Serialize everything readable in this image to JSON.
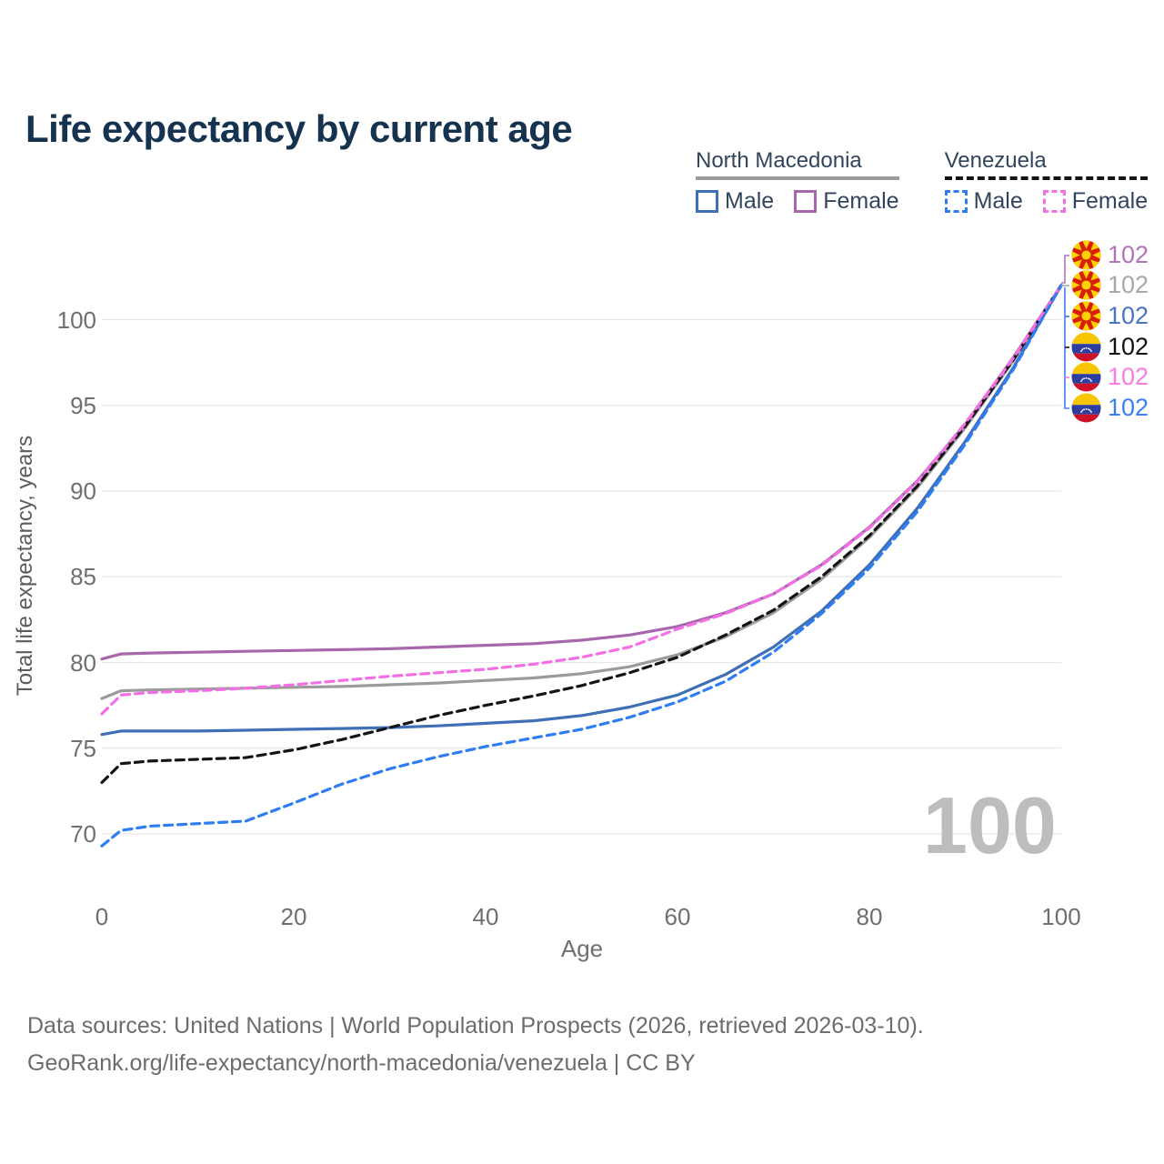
{
  "title": "Life expectancy by current age",
  "legend": {
    "groups": [
      {
        "label": "North Macedonia",
        "line_style": "solid",
        "underline_color": "#9b9b9b",
        "items": [
          {
            "label": "Male",
            "color": "#3f6fb5",
            "dashed": false
          },
          {
            "label": "Female",
            "color": "#a667ac",
            "dashed": false
          }
        ]
      },
      {
        "label": "Venezuela",
        "line_style": "dashed",
        "underline_color": "#141414",
        "items": [
          {
            "label": "Male",
            "color": "#2e7df2",
            "dashed": true
          },
          {
            "label": "Female",
            "color": "#f46ee6",
            "dashed": true
          }
        ]
      }
    ]
  },
  "chart_data": {
    "type": "line",
    "title": "Life expectancy by current age",
    "xlabel": "Age",
    "ylabel": "Total life expectancy, years",
    "xlim": [
      0,
      100
    ],
    "ylim": [
      67.5,
      103
    ],
    "grid": "horizontal",
    "x_ticks": [
      "0",
      "20",
      "40",
      "60",
      "80",
      "100"
    ],
    "x_tick_values": [
      0,
      20,
      40,
      60,
      80,
      100
    ],
    "y_ticks": [
      "70",
      "75",
      "80",
      "85",
      "90",
      "95",
      "100"
    ],
    "y_tick_values": [
      70,
      75,
      80,
      85,
      90,
      95,
      100
    ],
    "x": [
      0,
      2,
      5,
      10,
      15,
      20,
      25,
      30,
      35,
      40,
      45,
      50,
      55,
      60,
      65,
      70,
      75,
      80,
      85,
      90,
      95,
      100
    ],
    "series": [
      {
        "name": "North Macedonia Male",
        "country": "North Macedonia",
        "sex": "Male",
        "color": "#3f6fb5",
        "dashed": false,
        "values": [
          75.8,
          76.0,
          76.0,
          76.0,
          76.05,
          76.1,
          76.15,
          76.2,
          76.3,
          76.45,
          76.6,
          76.9,
          77.4,
          78.1,
          79.3,
          80.9,
          83.0,
          85.7,
          89.0,
          92.9,
          97.2,
          102
        ]
      },
      {
        "name": "North Macedonia (both sexes)",
        "country": "North Macedonia",
        "sex": "Both",
        "color": "#9b9b9b",
        "dashed": false,
        "values": [
          77.9,
          78.35,
          78.4,
          78.45,
          78.5,
          78.55,
          78.6,
          78.7,
          78.8,
          78.95,
          79.1,
          79.35,
          79.75,
          80.45,
          81.5,
          82.9,
          84.85,
          87.3,
          90.2,
          93.7,
          97.6,
          102
        ]
      },
      {
        "name": "North Macedonia Female",
        "country": "North Macedonia",
        "sex": "Female",
        "color": "#a667ac",
        "dashed": false,
        "values": [
          80.2,
          80.5,
          80.55,
          80.6,
          80.65,
          80.7,
          80.75,
          80.8,
          80.9,
          81.0,
          81.1,
          81.3,
          81.6,
          82.1,
          82.9,
          84.0,
          85.7,
          87.9,
          90.6,
          93.9,
          97.8,
          102
        ]
      },
      {
        "name": "Venezuela (both sexes)",
        "country": "Venezuela",
        "sex": "Both",
        "color": "#141414",
        "dashed": true,
        "values": [
          73.0,
          74.1,
          74.25,
          74.35,
          74.45,
          74.9,
          75.5,
          76.2,
          76.9,
          77.5,
          78.05,
          78.65,
          79.4,
          80.3,
          81.6,
          83.05,
          85.0,
          87.4,
          90.3,
          93.8,
          97.65,
          102
        ]
      },
      {
        "name": "Venezuela Female",
        "country": "Venezuela",
        "sex": "Female",
        "color": "#f46ee6",
        "dashed": true,
        "values": [
          77.0,
          78.1,
          78.25,
          78.35,
          78.5,
          78.7,
          78.95,
          79.2,
          79.4,
          79.6,
          79.9,
          80.3,
          80.9,
          81.95,
          82.85,
          84.0,
          85.65,
          87.85,
          90.55,
          93.95,
          97.75,
          102
        ]
      },
      {
        "name": "Venezuela Male",
        "country": "Venezuela",
        "sex": "Male",
        "color": "#2e7df2",
        "dashed": true,
        "values": [
          69.3,
          70.2,
          70.45,
          70.6,
          70.75,
          71.8,
          72.9,
          73.8,
          74.5,
          75.1,
          75.6,
          76.1,
          76.8,
          77.7,
          78.9,
          80.6,
          82.85,
          85.5,
          88.8,
          92.75,
          97.1,
          102
        ]
      }
    ]
  },
  "endpoints": {
    "rows": [
      {
        "flag": "north-macedonia",
        "series": "North Macedonia Female",
        "value": "102",
        "color": "#b273b8"
      },
      {
        "flag": "north-macedonia",
        "series": "North Macedonia (both sexes)",
        "value": "102",
        "color": "#a8a8a8"
      },
      {
        "flag": "north-macedonia",
        "series": "North Macedonia Male",
        "value": "102",
        "color": "#4a74c4"
      },
      {
        "flag": "venezuela",
        "series": "Venezuela (both sexes)",
        "value": "102",
        "color": "#111111"
      },
      {
        "flag": "venezuela",
        "series": "Venezuela Female",
        "value": "102",
        "color": "#fb7be4"
      },
      {
        "flag": "venezuela",
        "series": "Venezuela Male",
        "value": "102",
        "color": "#3b7ef2"
      }
    ]
  },
  "watermark": "100",
  "footer": {
    "line1": "Data sources: United Nations | World Population Prospects (2026, retrieved 2026-03-10).",
    "line2": "GeoRank.org/life-expectancy/north-macedonia/venezuela | CC BY"
  },
  "colors": {
    "title": "#15334e",
    "gridline": "#e8e8e8",
    "tick_text": "#6f6f6f",
    "watermark": "#bdbdbd",
    "footer_text": "#6c6c6c"
  }
}
